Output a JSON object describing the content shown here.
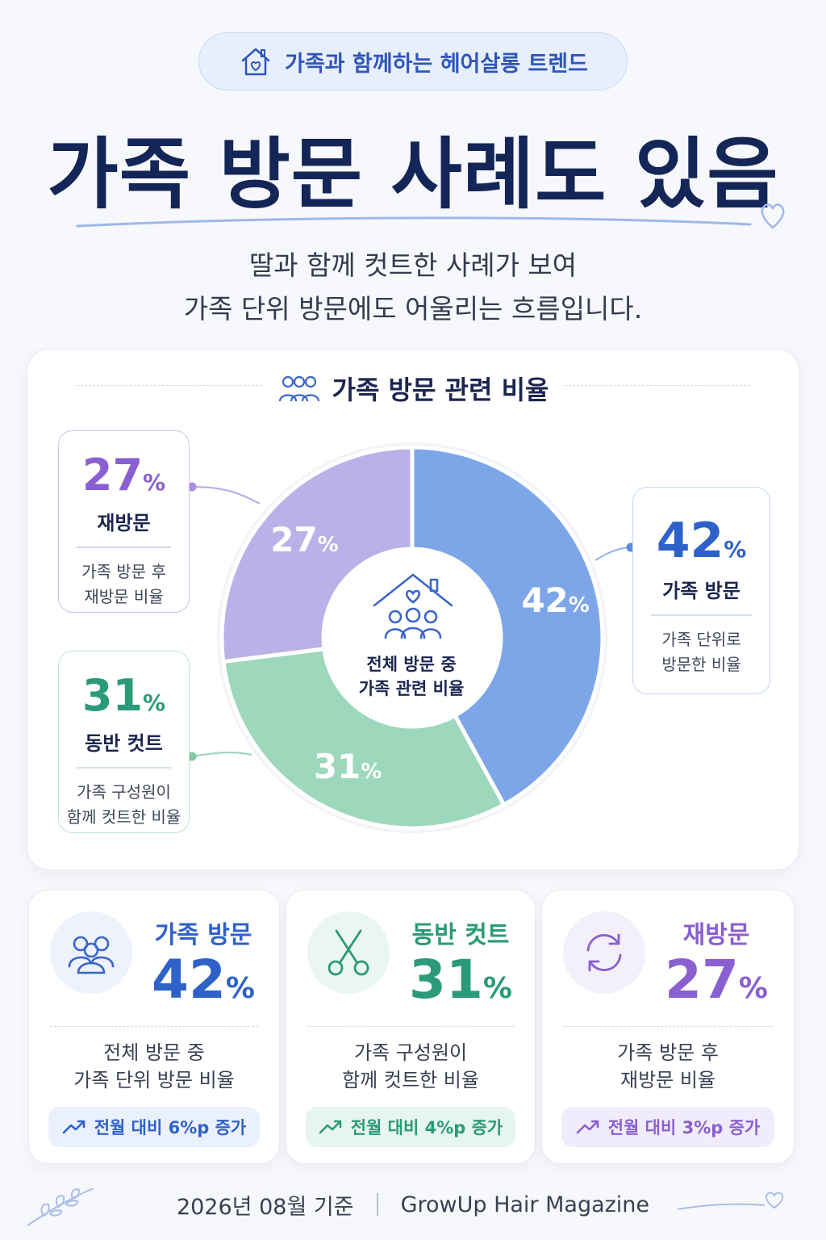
{
  "top_badge": {
    "label": "가족과 함께하는 헤어살롱 트렌드",
    "icon": "house-heart-icon"
  },
  "title": "가족 방문 사례도 있음",
  "subtitle": [
    "딸과 함께 컷트한 사례가 보여",
    "가족 단위 방문에도 어울리는 흐름입니다."
  ],
  "panel": {
    "title": "가족 방문 관련 비율",
    "center_label": [
      "전체 방문 중",
      "가족 관련 비율"
    ],
    "callouts": {
      "revisit": {
        "value": "27",
        "unit": "%",
        "label": "재방문",
        "desc": [
          "가족 방문 후",
          "재방문 비율"
        ]
      },
      "companion": {
        "value": "31",
        "unit": "%",
        "label": "동반 컷트",
        "desc": [
          "가족 구성원이",
          "함께 컷트한 비율"
        ]
      },
      "family": {
        "value": "42",
        "unit": "%",
        "label": "가족 방문",
        "desc": [
          "가족 단위로",
          "방문한 비율"
        ]
      }
    }
  },
  "chart_data": {
    "type": "pie",
    "title": "가족 방문 관련 비율",
    "categories": [
      "가족 방문",
      "동반 컷트",
      "재방문"
    ],
    "values": [
      42,
      31,
      27
    ],
    "unit": "%",
    "colors": [
      "#7ca6e8",
      "#9dd8bc",
      "#bcb0e8"
    ],
    "legend": "callouts"
  },
  "cards": [
    {
      "title": "가족 방문",
      "value": "42",
      "unit": "%",
      "desc": [
        "전체 방문 중",
        "가족 단위 방문 비율"
      ],
      "trend": "전월 대비 6%p 증가",
      "icon": "family-icon",
      "color": "#2f62c8",
      "bg": "#edf2fc"
    },
    {
      "title": "동반 컷트",
      "value": "31",
      "unit": "%",
      "desc": [
        "가족 구성원이",
        "함께 컷트한 비율"
      ],
      "trend": "전월 대비 4%p 증가",
      "icon": "scissors-icon",
      "color": "#2b9a78",
      "bg": "#eaf6f1"
    },
    {
      "title": "재방문",
      "value": "27",
      "unit": "%",
      "desc": [
        "가족 방문 후",
        "재방문 비율"
      ],
      "trend": "전월 대비 3%p 증가",
      "icon": "refresh-icon",
      "color": "#8a5fcf",
      "bg": "#f3effb"
    }
  ],
  "footer": {
    "date": "2026년 08월 기준",
    "source": "GrowUp Hair Magazine"
  }
}
